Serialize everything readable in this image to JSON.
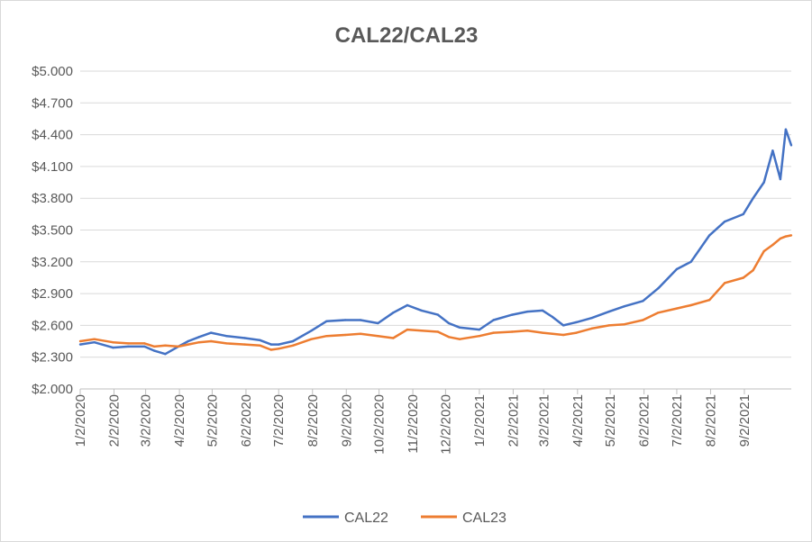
{
  "chart_data": {
    "type": "line",
    "title": "CAL22/CAL23",
    "xlabel": "",
    "ylabel": "",
    "ylim": [
      2.0,
      5.0
    ],
    "y_ticks": [
      "$2.000",
      "$2.300",
      "$2.600",
      "$2.900",
      "$3.200",
      "$3.500",
      "$3.800",
      "$4.100",
      "$4.400",
      "$4.700",
      "$5.000"
    ],
    "x_ticks": [
      "1/2/2020",
      "2/2/2020",
      "3/2/2020",
      "4/2/2020",
      "5/2/2020",
      "6/2/2020",
      "7/2/2020",
      "8/2/2020",
      "9/2/2020",
      "10/2/2020",
      "11/2/2020",
      "12/2/2020",
      "1/2/2021",
      "2/2/2021",
      "3/2/2021",
      "4/2/2021",
      "5/2/2021",
      "6/2/2021",
      "7/2/2021",
      "8/2/2021",
      "9/2/2021"
    ],
    "xlim": [
      "2020-01-02",
      "2021-10-15"
    ],
    "grid": true,
    "legend": "bottom",
    "x": [
      "2020-01-02",
      "2020-01-15",
      "2020-02-01",
      "2020-02-15",
      "2020-03-01",
      "2020-03-10",
      "2020-03-20",
      "2020-04-01",
      "2020-04-10",
      "2020-04-20",
      "2020-05-01",
      "2020-05-15",
      "2020-06-01",
      "2020-06-15",
      "2020-06-25",
      "2020-07-02",
      "2020-07-15",
      "2020-08-01",
      "2020-08-15",
      "2020-09-01",
      "2020-09-15",
      "2020-10-01",
      "2020-10-15",
      "2020-10-28",
      "2020-11-10",
      "2020-11-25",
      "2020-12-05",
      "2020-12-15",
      "2021-01-02",
      "2021-01-15",
      "2021-02-01",
      "2021-02-15",
      "2021-03-01",
      "2021-03-10",
      "2021-03-20",
      "2021-04-01",
      "2021-04-15",
      "2021-05-01",
      "2021-05-15",
      "2021-06-01",
      "2021-06-15",
      "2021-07-02",
      "2021-07-15",
      "2021-08-01",
      "2021-08-15",
      "2021-09-01",
      "2021-09-10",
      "2021-09-20",
      "2021-09-28",
      "2021-10-05",
      "2021-10-10",
      "2021-10-15"
    ],
    "series": [
      {
        "name": "CAL22",
        "color": "#4472c4",
        "values": [
          2.42,
          2.44,
          2.39,
          2.4,
          2.4,
          2.36,
          2.33,
          2.4,
          2.45,
          2.49,
          2.53,
          2.5,
          2.48,
          2.46,
          2.42,
          2.42,
          2.45,
          2.55,
          2.64,
          2.65,
          2.65,
          2.62,
          2.72,
          2.79,
          2.74,
          2.7,
          2.62,
          2.58,
          2.56,
          2.65,
          2.7,
          2.73,
          2.74,
          2.68,
          2.6,
          2.63,
          2.67,
          2.73,
          2.78,
          2.83,
          2.95,
          3.13,
          3.2,
          3.45,
          3.58,
          3.65,
          3.8,
          3.95,
          4.25,
          3.98,
          4.45,
          4.3
        ]
      },
      {
        "name": "CAL23",
        "color": "#ed7d31",
        "values": [
          2.45,
          2.47,
          2.44,
          2.43,
          2.43,
          2.4,
          2.41,
          2.4,
          2.42,
          2.44,
          2.45,
          2.43,
          2.42,
          2.41,
          2.37,
          2.38,
          2.41,
          2.47,
          2.5,
          2.51,
          2.52,
          2.5,
          2.48,
          2.56,
          2.55,
          2.54,
          2.49,
          2.47,
          2.5,
          2.53,
          2.54,
          2.55,
          2.53,
          2.52,
          2.51,
          2.53,
          2.57,
          2.6,
          2.61,
          2.65,
          2.72,
          2.76,
          2.79,
          2.84,
          3.0,
          3.05,
          3.12,
          3.3,
          3.36,
          3.42,
          3.44,
          3.45
        ]
      }
    ]
  }
}
